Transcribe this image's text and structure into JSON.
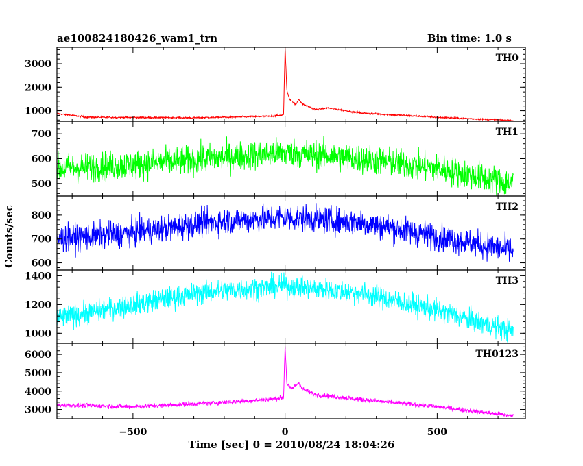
{
  "header": {
    "title": "ae100824180426_wam1_trn",
    "bin_time": "Bin time: 1.0 s"
  },
  "chart_data": {
    "type": "line",
    "xlabel": "Time [sec] 0 = 2010/08/24 18:04:26",
    "ylabel": "Counts/sec",
    "xlim": [
      -750,
      790
    ],
    "x_ticks": [
      -500,
      0,
      500
    ],
    "x_tick_labels": [
      "−500",
      "0",
      "500"
    ],
    "x_range": [
      -750,
      750
    ],
    "grid": false,
    "panels": [
      {
        "name": "TH0",
        "color": "#ff0000",
        "ylim": [
          550,
          3700
        ],
        "y_ticks": [
          1000,
          2000,
          3000
        ],
        "profile": [
          [
            -750,
            880
          ],
          [
            -650,
            720
          ],
          [
            -300,
            700
          ],
          [
            -50,
            760
          ],
          [
            -5,
            820
          ],
          [
            0,
            3700
          ],
          [
            6,
            1850
          ],
          [
            15,
            1500
          ],
          [
            35,
            1250
          ],
          [
            45,
            1500
          ],
          [
            55,
            1300
          ],
          [
            100,
            1050
          ],
          [
            140,
            1120
          ],
          [
            250,
            900
          ],
          [
            500,
            720
          ],
          [
            750,
            580
          ]
        ],
        "noise": 25
      },
      {
        "name": "TH1",
        "color": "#00ff00",
        "ylim": [
          450,
          750
        ],
        "y_ticks": [
          500,
          600,
          700
        ],
        "profile": [
          [
            -750,
            560
          ],
          [
            -500,
            575
          ],
          [
            -250,
            600
          ],
          [
            0,
            625
          ],
          [
            250,
            600
          ],
          [
            500,
            560
          ],
          [
            750,
            500
          ]
        ],
        "noise": 42
      },
      {
        "name": "TH2",
        "color": "#0000ff",
        "ylim": [
          570,
          880
        ],
        "y_ticks": [
          600,
          700,
          800
        ],
        "profile": [
          [
            -750,
            700
          ],
          [
            -500,
            725
          ],
          [
            -250,
            770
          ],
          [
            0,
            790
          ],
          [
            250,
            770
          ],
          [
            500,
            710
          ],
          [
            750,
            650
          ]
        ],
        "noise": 40
      },
      {
        "name": "TH3",
        "color": "#00ffff",
        "ylim": [
          930,
          1440
        ],
        "y_ticks": [
          1000,
          1200,
          1400
        ],
        "profile": [
          [
            -750,
            1100
          ],
          [
            -500,
            1200
          ],
          [
            -250,
            1290
          ],
          [
            0,
            1330
          ],
          [
            250,
            1280
          ],
          [
            500,
            1160
          ],
          [
            750,
            1010
          ]
        ],
        "noise": 55
      },
      {
        "name": "TH0123",
        "color": "#ff00ff",
        "ylim": [
          2500,
          6600
        ],
        "y_ticks": [
          3000,
          4000,
          5000,
          6000
        ],
        "profile": [
          [
            -750,
            3250
          ],
          [
            -500,
            3150
          ],
          [
            -250,
            3350
          ],
          [
            -50,
            3550
          ],
          [
            -5,
            3650
          ],
          [
            0,
            6500
          ],
          [
            6,
            4400
          ],
          [
            20,
            4100
          ],
          [
            45,
            4450
          ],
          [
            60,
            4100
          ],
          [
            100,
            3800
          ],
          [
            250,
            3550
          ],
          [
            500,
            3150
          ],
          [
            750,
            2650
          ]
        ],
        "noise": 90
      }
    ]
  }
}
